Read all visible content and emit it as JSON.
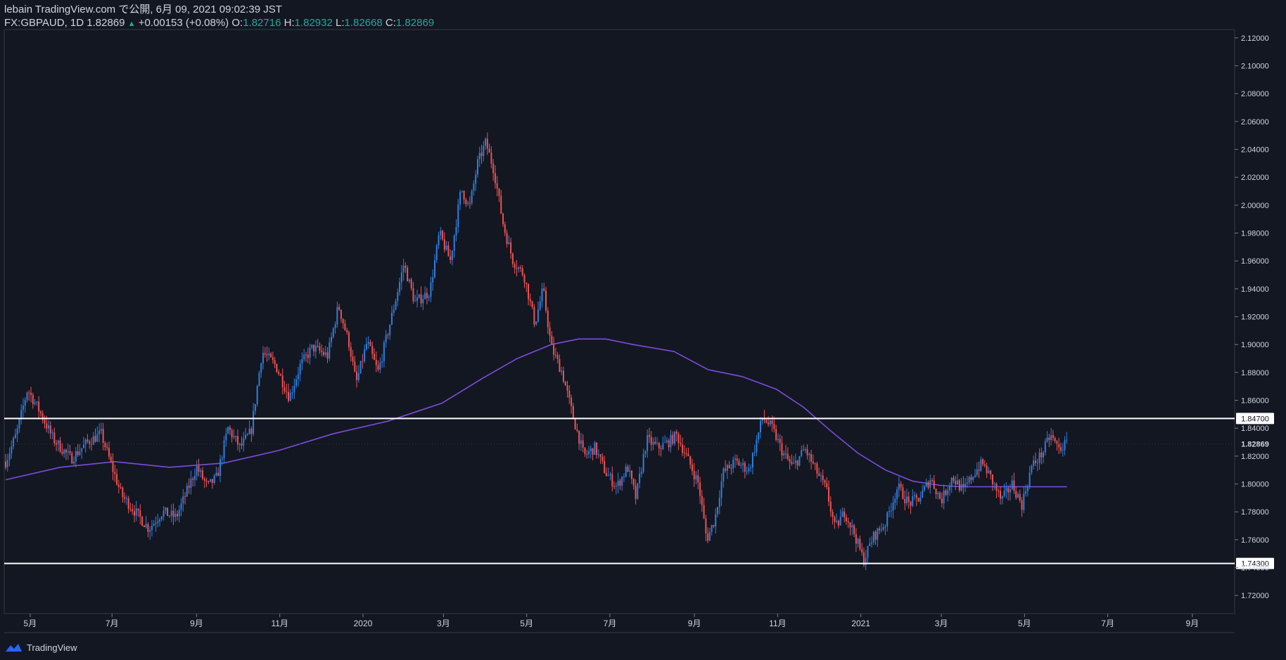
{
  "header": {
    "publish_line": "lebain TradingView.com で公開, 6月 09, 2021 09:02:39 JST",
    "symbol": "FX:GBPAUD, 1D",
    "last_price": "1.82869",
    "change_arrow": "▲",
    "change": "+0.00153 (+0.08%)",
    "open_label": "O:",
    "open_value": "1.82716",
    "high_label": "H:",
    "high_value": "1.82932",
    "low_label": "L:",
    "low_value": "1.82668",
    "close_label": "C:",
    "close_value": "1.82869"
  },
  "footer": {
    "brand": "TradingView"
  },
  "colors": {
    "background": "#131722",
    "up_candle": "#2e7fe0",
    "down_candle": "#ef5350",
    "moving_average": "#7c4ddb",
    "level_line": "#ffffff",
    "axis_text": "#d1d4dc",
    "header_value": "#26a69a"
  },
  "chart_data": {
    "type": "candlestick",
    "title": "FX:GBPAUD, 1D",
    "xlabel": "",
    "ylabel": "",
    "ylim": [
      1.707,
      2.126
    ],
    "y_ticks": [
      "2.12000",
      "2.10000",
      "2.08000",
      "2.06000",
      "2.04000",
      "2.02000",
      "2.00000",
      "1.98000",
      "1.96000",
      "1.94000",
      "1.92000",
      "1.90000",
      "1.88000",
      "1.86000",
      "1.84000",
      "1.82000",
      "1.80000",
      "1.78000",
      "1.76000",
      "1.74000",
      "1.72000"
    ],
    "x_ticks": [
      {
        "label": "5月",
        "day": 18
      },
      {
        "label": "7月",
        "day": 78
      },
      {
        "label": "9月",
        "day": 140
      },
      {
        "label": "11月",
        "day": 201
      },
      {
        "label": "2020",
        "day": 262
      },
      {
        "label": "3月",
        "day": 321
      },
      {
        "label": "5月",
        "day": 382
      },
      {
        "label": "7月",
        "day": 443
      },
      {
        "label": "9月",
        "day": 505
      },
      {
        "label": "11月",
        "day": 566
      },
      {
        "label": "2021",
        "day": 627
      },
      {
        "label": "3月",
        "day": 686
      },
      {
        "label": "5月",
        "day": 747
      },
      {
        "label": "7月",
        "day": 808
      },
      {
        "label": "9月",
        "day": 870
      }
    ],
    "price_path": [
      [
        0,
        1.816
      ],
      [
        8,
        1.836
      ],
      [
        16,
        1.868
      ],
      [
        25,
        1.852
      ],
      [
        35,
        1.832
      ],
      [
        48,
        1.818
      ],
      [
        60,
        1.83
      ],
      [
        70,
        1.836
      ],
      [
        78,
        1.812
      ],
      [
        85,
        1.792
      ],
      [
        95,
        1.78
      ],
      [
        105,
        1.768
      ],
      [
        115,
        1.78
      ],
      [
        125,
        1.776
      ],
      [
        133,
        1.795
      ],
      [
        140,
        1.812
      ],
      [
        148,
        1.798
      ],
      [
        155,
        1.805
      ],
      [
        163,
        1.84
      ],
      [
        172,
        1.826
      ],
      [
        180,
        1.838
      ],
      [
        188,
        1.895
      ],
      [
        198,
        1.885
      ],
      [
        208,
        1.862
      ],
      [
        216,
        1.885
      ],
      [
        225,
        1.898
      ],
      [
        236,
        1.892
      ],
      [
        244,
        1.928
      ],
      [
        252,
        1.9
      ],
      [
        257,
        1.872
      ],
      [
        265,
        1.902
      ],
      [
        273,
        1.88
      ],
      [
        283,
        1.92
      ],
      [
        292,
        1.958
      ],
      [
        300,
        1.93
      ],
      [
        311,
        1.938
      ],
      [
        318,
        1.98
      ],
      [
        326,
        1.96
      ],
      [
        334,
        2.012
      ],
      [
        340,
        1.998
      ],
      [
        346,
        2.03
      ],
      [
        352,
        2.045
      ],
      [
        358,
        2.025
      ],
      [
        365,
        1.985
      ],
      [
        372,
        1.96
      ],
      [
        380,
        1.95
      ],
      [
        388,
        1.915
      ],
      [
        394,
        1.94
      ],
      [
        400,
        1.898
      ],
      [
        408,
        1.88
      ],
      [
        416,
        1.848
      ],
      [
        424,
        1.82
      ],
      [
        432,
        1.826
      ],
      [
        440,
        1.808
      ],
      [
        448,
        1.798
      ],
      [
        456,
        1.812
      ],
      [
        462,
        1.79
      ],
      [
        470,
        1.832
      ],
      [
        478,
        1.826
      ],
      [
        486,
        1.83
      ],
      [
        492,
        1.835
      ],
      [
        500,
        1.818
      ],
      [
        508,
        1.8
      ],
      [
        514,
        1.76
      ],
      [
        520,
        1.775
      ],
      [
        526,
        1.808
      ],
      [
        535,
        1.816
      ],
      [
        545,
        1.81
      ],
      [
        555,
        1.848
      ],
      [
        562,
        1.84
      ],
      [
        570,
        1.822
      ],
      [
        577,
        1.812
      ],
      [
        586,
        1.825
      ],
      [
        594,
        1.81
      ],
      [
        602,
        1.795
      ],
      [
        608,
        1.768
      ],
      [
        615,
        1.78
      ],
      [
        622,
        1.765
      ],
      [
        629,
        1.745
      ],
      [
        636,
        1.762
      ],
      [
        645,
        1.772
      ],
      [
        654,
        1.798
      ],
      [
        662,
        1.786
      ],
      [
        670,
        1.79
      ],
      [
        678,
        1.804
      ],
      [
        686,
        1.788
      ],
      [
        694,
        1.805
      ],
      [
        702,
        1.795
      ],
      [
        710,
        1.808
      ],
      [
        716,
        1.815
      ],
      [
        722,
        1.805
      ],
      [
        730,
        1.788
      ],
      [
        738,
        1.8
      ],
      [
        745,
        1.785
      ],
      [
        752,
        1.812
      ],
      [
        760,
        1.822
      ],
      [
        766,
        1.835
      ],
      [
        772,
        1.825
      ],
      [
        778,
        1.829
      ]
    ],
    "moving_average": [
      [
        0,
        1.803
      ],
      [
        40,
        1.812
      ],
      [
        80,
        1.816
      ],
      [
        120,
        1.812
      ],
      [
        160,
        1.815
      ],
      [
        200,
        1.824
      ],
      [
        240,
        1.836
      ],
      [
        280,
        1.845
      ],
      [
        320,
        1.858
      ],
      [
        350,
        1.876
      ],
      [
        375,
        1.89
      ],
      [
        400,
        1.9
      ],
      [
        420,
        1.904
      ],
      [
        440,
        1.904
      ],
      [
        460,
        1.9
      ],
      [
        490,
        1.895
      ],
      [
        515,
        1.882
      ],
      [
        540,
        1.877
      ],
      [
        565,
        1.868
      ],
      [
        585,
        1.855
      ],
      [
        605,
        1.838
      ],
      [
        625,
        1.822
      ],
      [
        645,
        1.81
      ],
      [
        665,
        1.802
      ],
      [
        685,
        1.799
      ],
      [
        700,
        1.798
      ],
      [
        720,
        1.798
      ],
      [
        750,
        1.798
      ],
      [
        778,
        1.798
      ]
    ],
    "levels": [
      {
        "label": "1.84700",
        "value": 1.847
      },
      {
        "label": "1.74300",
        "value": 1.743
      }
    ],
    "last_price": {
      "label": "1.82869",
      "value": 1.82869
    }
  }
}
